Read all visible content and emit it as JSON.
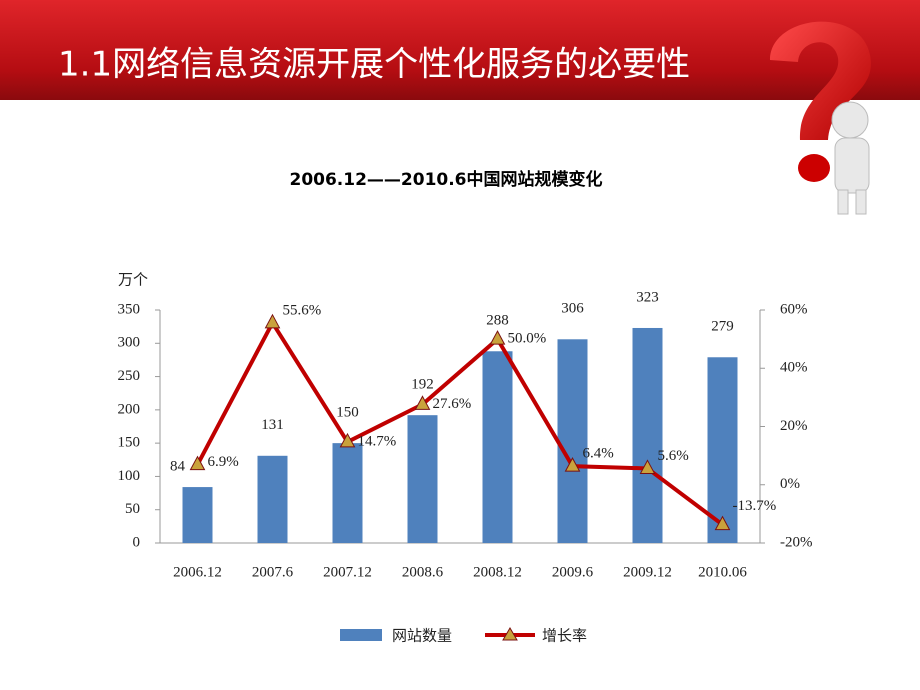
{
  "header": {
    "title": "1.1网络信息资源开展个性化服务的必要性"
  },
  "chart_data": {
    "type": "bar-line",
    "title": "2006.12——2010.6中国网站规模变化",
    "y_label": "万个",
    "categories": [
      "2006.12",
      "2007.6",
      "2007.12",
      "2008.6",
      "2008.12",
      "2009.6",
      "2009.12",
      "2010.06"
    ],
    "series": [
      {
        "name": "网站数量",
        "type": "bar",
        "color": "#4f81bd",
        "values": [
          84,
          131,
          150,
          192,
          288,
          306,
          323,
          279
        ]
      },
      {
        "name": "增长率",
        "type": "line",
        "axis": "y2",
        "color": "#c00000",
        "marker_color": "#c9a23c",
        "values": [
          6.9,
          55.6,
          14.7,
          27.6,
          50.0,
          6.4,
          5.6,
          -13.7
        ],
        "value_labels": [
          "6.9%",
          "55.6%",
          "14.7%",
          "27.6%",
          "50.0%",
          "6.4%",
          "5.6%",
          "-13.7%"
        ]
      }
    ],
    "ylim": [
      0,
      350
    ],
    "yticks": [
      0,
      50,
      100,
      150,
      200,
      250,
      300,
      350
    ],
    "y2lim": [
      -20,
      60
    ],
    "y2ticks": [
      {
        "value": -20,
        "label": "-20%"
      },
      {
        "value": 0,
        "label": "0%"
      },
      {
        "value": 20,
        "label": "20%"
      },
      {
        "value": 40,
        "label": "40%"
      },
      {
        "value": 60,
        "label": "60%"
      }
    ],
    "legend": "bottom"
  }
}
